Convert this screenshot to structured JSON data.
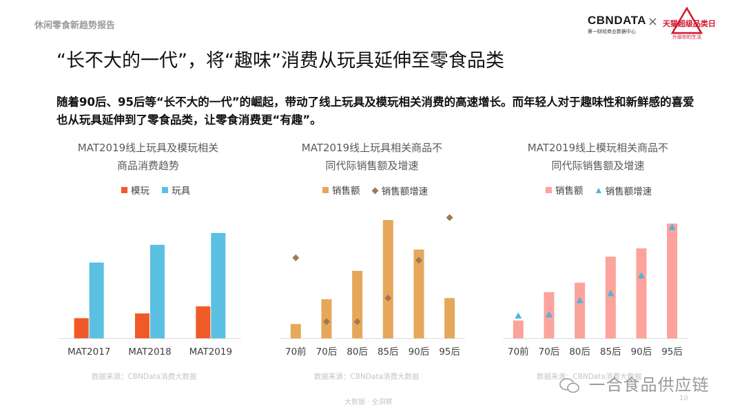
{
  "header": {
    "report_name": "休闲零食新趋势报告",
    "cbn_logo": "CBNDATA",
    "cbn_sub": "第一财经商业数据中心",
    "separator": "×",
    "tmall_name": "天猫超级品类日",
    "tmall_slogan": "升级你的生活"
  },
  "title": "“长不大的一代”，将“趣味”消费从玩具延伸至零食品类",
  "intro": "随着90后、95后等“长不大的一代”的崛起，带动了线上玩具及模玩相关消费的高速增长。而年轻人对于趣味性和新鲜感的喜爱也从玩具延伸到了零食品类，让零食消费更“有趣”。",
  "footer": {
    "tag": "大数据 · 全洞察",
    "page_number": "10",
    "watermark": "一合食品供应链"
  },
  "chart_data": [
    {
      "type": "bar",
      "title_line1": "MAT2019线上玩具及模玩相关",
      "title_line2": "商品消费趋势",
      "categories": [
        "MAT2017",
        "MAT2018",
        "MAT2019"
      ],
      "series": [
        {
          "name": "模玩",
          "color": "#f05a28",
          "values": [
            17,
            21,
            27
          ]
        },
        {
          "name": "玩具",
          "color": "#5bc0e2",
          "values": [
            64,
            79,
            89
          ]
        }
      ],
      "ylim": [
        0,
        100
      ],
      "source": "数据来源：CBNData消费大数据",
      "legend_position": "top-center"
    },
    {
      "type": "bar",
      "title_line1": "MAT2019线上玩具相关商品不",
      "title_line2": "同代际销售额及增速",
      "categories": [
        "70前",
        "70后",
        "80后",
        "85后",
        "90后",
        "95后"
      ],
      "series": [
        {
          "name": "销售额",
          "type": "bar",
          "color": "#e6a75a",
          "values": [
            12,
            33,
            57,
            100,
            75,
            34
          ]
        },
        {
          "name": "销售额增速",
          "type": "scatter",
          "marker": "diamond",
          "color": "#a1784f",
          "values": [
            68,
            14,
            14,
            34,
            66,
            102
          ]
        }
      ],
      "ylim": [
        0,
        100
      ],
      "source": "数据来源：CBNData消费大数据",
      "legend_position": "top-center"
    },
    {
      "type": "bar",
      "title_line1": "MAT2019线上模玩相关商品不",
      "title_line2": "同代际销售额及增速",
      "categories": [
        "70前",
        "70后",
        "80后",
        "85后",
        "90后",
        "95后"
      ],
      "series": [
        {
          "name": "销售额",
          "type": "bar",
          "color": "#fca39b",
          "values": [
            15,
            39,
            47,
            69,
            76,
            97
          ]
        },
        {
          "name": "销售额增速",
          "type": "scatter",
          "marker": "triangle",
          "color": "#4fb3dd",
          "values": [
            19,
            20,
            32,
            38,
            53,
            94
          ]
        }
      ],
      "ylim": [
        0,
        100
      ],
      "source": "数据来源：CBNData消费大数据",
      "legend_position": "top-center"
    }
  ]
}
